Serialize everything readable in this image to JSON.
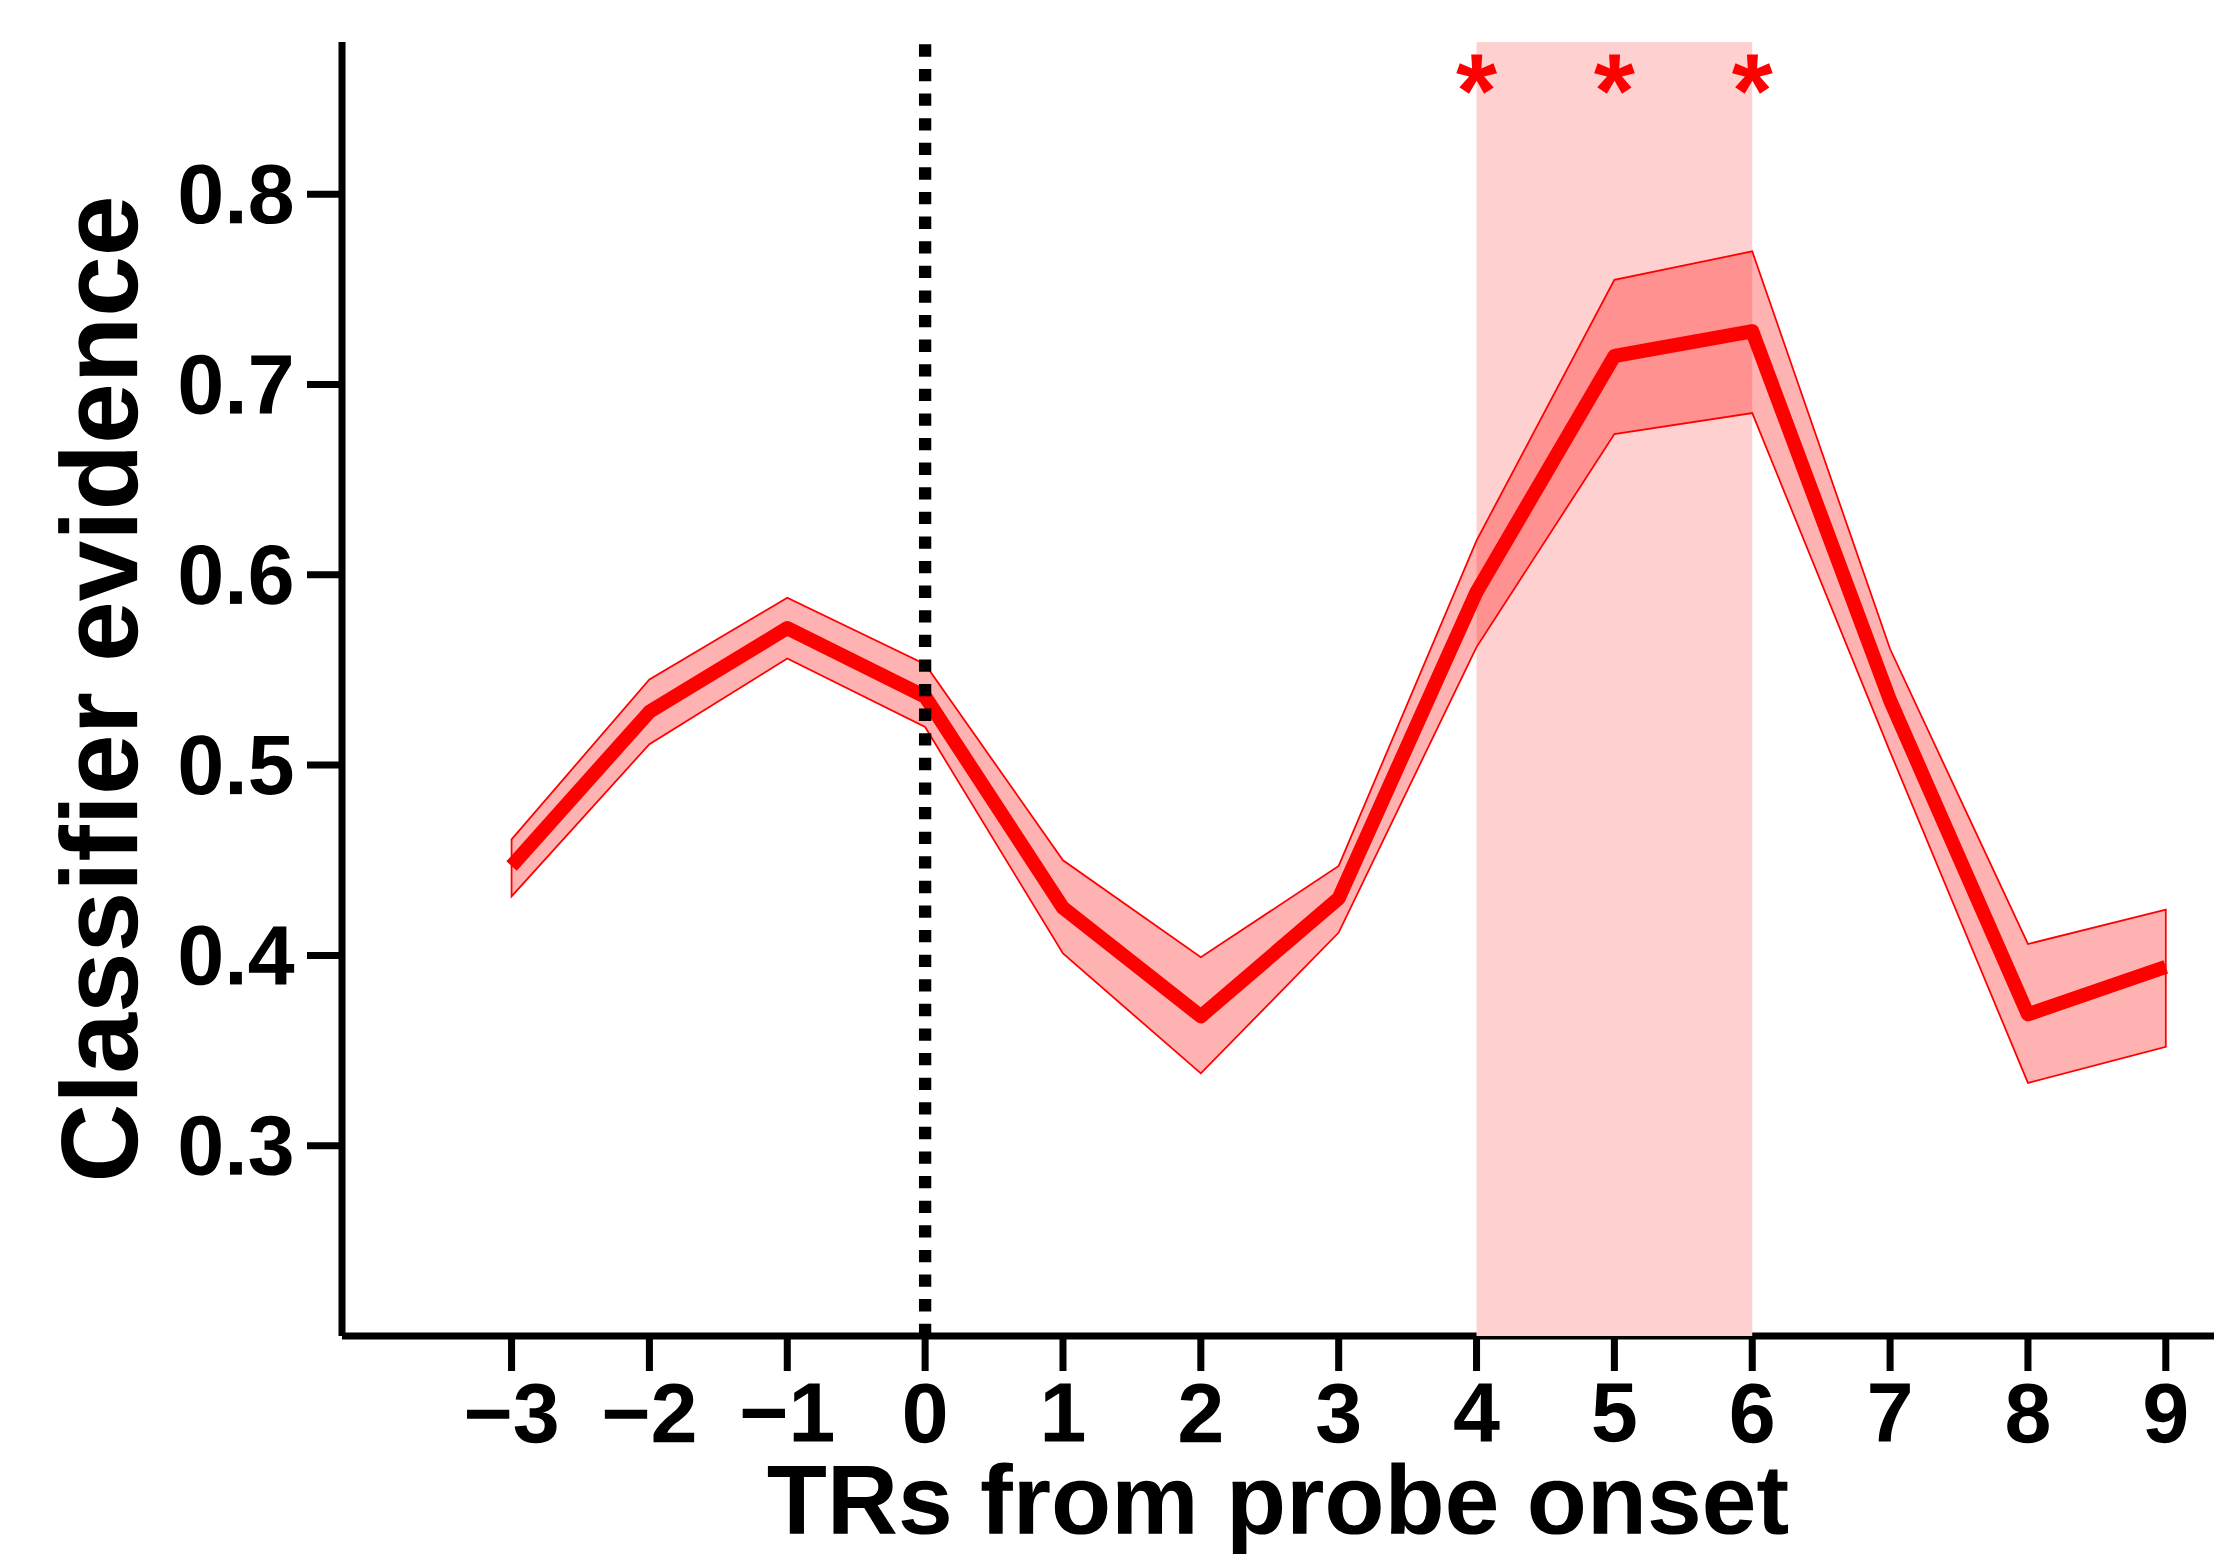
{
  "chart_data": {
    "type": "line",
    "xlabel": "TRs from probe onset",
    "ylabel": "Classifier evidence",
    "x": [
      -3,
      -2,
      -1,
      0,
      1,
      2,
      3,
      4,
      5,
      6,
      7,
      8,
      9
    ],
    "series": [
      {
        "color": "#ff0000",
        "values": [
          0.447,
          0.528,
          0.572,
          0.536,
          0.425,
          0.368,
          0.43,
          0.591,
          0.715,
          0.728,
          0.534,
          0.369,
          0.394
        ],
        "lower": [
          0.431,
          0.511,
          0.556,
          0.52,
          0.401,
          0.338,
          0.412,
          0.562,
          0.674,
          0.685,
          0.507,
          0.333,
          0.352
        ],
        "upper": [
          0.461,
          0.545,
          0.588,
          0.553,
          0.45,
          0.399,
          0.447,
          0.618,
          0.755,
          0.77,
          0.561,
          0.406,
          0.424
        ]
      }
    ],
    "xlim": [
      -4.23,
      9.35
    ],
    "ylim": [
      0.2,
      0.88
    ],
    "xticks": [
      {
        "value": -3,
        "label": "−3"
      },
      {
        "value": -2,
        "label": "−2"
      },
      {
        "value": -1,
        "label": "−1"
      },
      0,
      1,
      2,
      3,
      4,
      5,
      6,
      7,
      8,
      9
    ],
    "yticks": [
      0.3,
      0.4,
      0.5,
      0.6,
      0.7,
      0.8
    ],
    "ref_lines": [
      {
        "axis": "x",
        "value": 0,
        "color": "#000000",
        "line_style": "dotted"
      }
    ],
    "bands": [
      {
        "axis": "x",
        "from": 4,
        "to": 6,
        "color": "#ffd0d0"
      }
    ],
    "annotations": [
      "*",
      "*",
      "*"
    ],
    "grid": false,
    "marker": "none",
    "line_style": "solid"
  }
}
